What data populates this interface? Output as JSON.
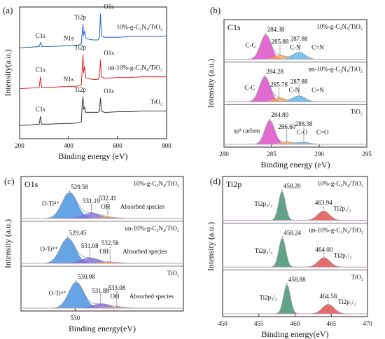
{
  "chart_data": [
    {
      "type": "line",
      "panel": "(a)",
      "xlabel": "Binding energy (eV)",
      "ylabel": "Intensity(a.u.)",
      "xlim": [
        200,
        800
      ],
      "xticks": [
        200,
        400,
        600,
        800
      ],
      "ylim": [
        0,
        100
      ],
      "x": [
        200,
        250,
        280,
        285,
        290,
        320,
        380,
        396,
        400,
        404,
        440,
        452,
        455,
        459,
        461,
        465,
        470,
        500,
        520,
        526,
        530,
        534,
        545,
        560,
        600,
        650,
        700,
        750,
        800
      ],
      "series": [
        {
          "name": "10%-g-C₃N₄/TiO₂",
          "color": "#1f5fd0",
          "annotations": [
            "C1s",
            "N1s",
            "Ti2p",
            "O1s"
          ],
          "values": [
            69,
            69.5,
            70,
            73,
            70,
            70,
            70.5,
            70.5,
            71,
            70.5,
            71,
            72,
            80,
            87,
            78,
            82,
            76,
            75,
            75,
            77,
            95,
            78,
            77,
            77,
            77,
            77.5,
            77.5,
            77.5,
            78
          ]
        },
        {
          "name": "un-10%-g-C₃N₄/TiO₂",
          "color": "#e02020",
          "annotations": [
            "C1s",
            "N1s",
            "Ti2p",
            "O1s"
          ],
          "values": [
            38,
            38.5,
            39,
            47,
            39,
            39,
            39.5,
            39.5,
            40,
            39.5,
            40,
            41,
            52,
            64,
            50,
            55,
            46,
            45,
            45,
            47,
            60,
            47,
            46,
            46,
            46.5,
            46.5,
            47,
            47,
            47
          ]
        },
        {
          "name": "TiO₂",
          "color": "#333333",
          "annotations": [
            "C1s",
            "Ti2p",
            "O1s"
          ],
          "values": [
            10,
            10.5,
            11,
            17,
            11,
            11,
            11.5,
            11.5,
            11.5,
            11.5,
            12,
            13,
            25,
            32,
            22,
            24,
            20,
            20,
            20,
            21,
            31,
            21,
            20,
            20,
            20.5,
            20.5,
            21,
            21,
            21
          ]
        }
      ]
    },
    {
      "type": "peaks",
      "panel": "(b)",
      "title": "C1s",
      "xlabel": "Binding energy (eV)",
      "ylabel": "Intensity (a.u.)",
      "xlim": [
        280,
        295
      ],
      "xticks": [
        280,
        285,
        290,
        295
      ],
      "ylim": [
        0,
        100
      ],
      "series": [
        {
          "name": "10%-g-C₃N₄/TiO₂",
          "peaks": [
            {
              "name": "C-C",
              "center": 284.38,
              "height": 90,
              "fwhm": 1.3,
              "color": "#d946c4"
            },
            {
              "name": "C-N",
              "center": 285.88,
              "height": 14,
              "fwhm": 1.4,
              "color": "#f2a54a"
            },
            {
              "name": "C=N",
              "center": 287.88,
              "height": 26,
              "fwhm": 1.5,
              "color": "#56b4e9"
            }
          ]
        },
        {
          "name": "un-10%-g-C₃N₄/TiO₂",
          "peaks": [
            {
              "name": "C-C",
              "center": 284.28,
              "height": 92,
              "fwhm": 1.3,
              "color": "#d946c4"
            },
            {
              "name": "C-N",
              "center": 285.78,
              "height": 14,
              "fwhm": 1.4,
              "color": "#f2a54a"
            },
            {
              "name": "C=N",
              "center": 287.88,
              "height": 22,
              "fwhm": 1.5,
              "color": "#56b4e9"
            }
          ]
        },
        {
          "name": "TiO₂",
          "peaks": [
            {
              "name": "sp³ carbon",
              "center": 284.8,
              "center_label": "284.80",
              "height": 88,
              "fwhm": 1.2,
              "color": "#d946c4"
            },
            {
              "name": "C-O",
              "center": 286.6,
              "center_label": "286.60",
              "height": 8,
              "fwhm": 1.4,
              "color": "#f2a54a"
            },
            {
              "name": "C=O",
              "center": 288.38,
              "height": 7,
              "fwhm": 1.5,
              "color": "#56b4e9"
            }
          ]
        }
      ]
    },
    {
      "type": "peaks",
      "panel": "(c)",
      "title": "O1s",
      "xlabel": "Binding energy(eV)",
      "ylabel": "Intensity (a.u.)",
      "xlim": [
        526,
        538
      ],
      "xticks": [
        530
      ],
      "ylim": [
        0,
        100
      ],
      "series": [
        {
          "name": "10%-g-C₃N₄/TiO₂",
          "peaks": [
            {
              "name": "O-Ti⁴⁺",
              "center": 529.58,
              "height": 88,
              "fwhm": 1.3,
              "color": "#3f8fe0"
            },
            {
              "name": "OH",
              "center": 531.19,
              "height": 18,
              "fwhm": 1.5,
              "color": "#7a6ad8"
            },
            {
              "name": "Absorbed species",
              "center": 532.41,
              "height": 4,
              "fwhm": 1.6,
              "color": "#e8964a"
            }
          ]
        },
        {
          "name": "un-10%-g-C₃N₄/TiO₂",
          "peaks": [
            {
              "name": "O-Ti⁴⁺",
              "center": 529.45,
              "height": 85,
              "fwhm": 1.3,
              "color": "#3f8fe0"
            },
            {
              "name": "OH",
              "center": 531.08,
              "height": 18,
              "fwhm": 1.5,
              "color": "#7a6ad8"
            },
            {
              "name": "Absorbed species",
              "center": 532.58,
              "height": 4,
              "fwhm": 1.6,
              "color": "#e8964a"
            }
          ]
        },
        {
          "name": "TiO₂",
          "peaks": [
            {
              "name": "O-Ti⁴⁺",
              "center": 530.08,
              "height": 88,
              "fwhm": 1.3,
              "color": "#3f8fe0"
            },
            {
              "name": "OH",
              "center": 531.88,
              "height": 14,
              "fwhm": 1.5,
              "color": "#7a6ad8"
            },
            {
              "name": "Absorbed species",
              "center": 533.08,
              "height": 4,
              "fwhm": 1.6,
              "color": "#e8964a"
            }
          ]
        }
      ]
    },
    {
      "type": "peaks",
      "panel": "(d)",
      "title": "Ti2p",
      "xlabel": "Binding energy(eV)",
      "ylabel": "Intensity (a.u.)",
      "xlim": [
        450,
        470
      ],
      "xticks": [
        450,
        455,
        460,
        465,
        470
      ],
      "ylim": [
        0,
        100
      ],
      "series": [
        {
          "name": "10%-g-C₃N₄/TiO₂",
          "peaks": [
            {
              "name": "Ti2p₃/₂",
              "center": 458.2,
              "center_label": "458.20",
              "height": 92,
              "fwhm": 1.1,
              "color": "#3a8c6a"
            },
            {
              "name": "Ti2p₁/₂",
              "center": 463.94,
              "height": 30,
              "fwhm": 1.9,
              "color": "#e04848"
            }
          ]
        },
        {
          "name": "un-10%-g-C₃N₄/TiO₂",
          "peaks": [
            {
              "name": "Ti2p₃/₂",
              "center": 458.24,
              "height": 92,
              "fwhm": 1.1,
              "color": "#3a8c6a"
            },
            {
              "name": "Ti2p₁/₂",
              "center": 464,
              "center_label": "464.00",
              "height": 30,
              "fwhm": 1.9,
              "color": "#e04848"
            }
          ]
        },
        {
          "name": "TiO₂",
          "peaks": [
            {
              "name": "Ti2p₃/₂",
              "center": 458.88,
              "height": 92,
              "fwhm": 1.1,
              "color": "#3a8c6a"
            },
            {
              "name": "Ti2p₁/₂",
              "center": 464.58,
              "height": 30,
              "fwhm": 1.9,
              "color": "#e04848"
            }
          ]
        }
      ]
    }
  ]
}
